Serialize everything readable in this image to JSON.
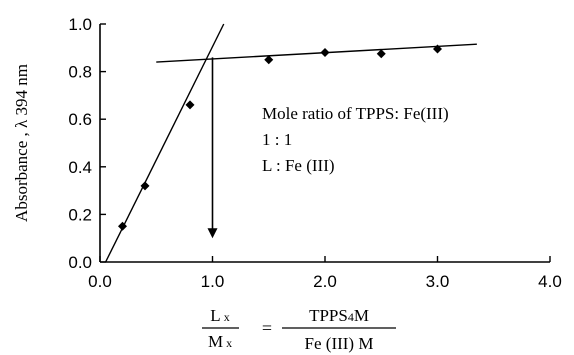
{
  "chart_data": {
    "type": "scatter",
    "ylabel": "Absorbance , λ 394 nm",
    "xlim": [
      0.0,
      4.0
    ],
    "ylim": [
      0.0,
      1.0
    ],
    "x_ticks": [
      "0.0",
      "1.0",
      "2.0",
      "3.0",
      "4.0"
    ],
    "y_ticks": [
      "0.0",
      "0.2",
      "0.4",
      "0.6",
      "0.8",
      "1.0"
    ],
    "grid": false,
    "series": [
      {
        "points": [
          {
            "x": 0.2,
            "y": 0.15
          },
          {
            "x": 0.4,
            "y": 0.32
          },
          {
            "x": 0.8,
            "y": 0.66
          },
          {
            "x": 1.5,
            "y": 0.85
          },
          {
            "x": 2.0,
            "y": 0.88
          },
          {
            "x": 2.5,
            "y": 0.875
          },
          {
            "x": 3.0,
            "y": 0.895
          }
        ],
        "marker": "diamond",
        "color": "#000000"
      }
    ],
    "fit_lines": [
      {
        "x": [
          0.05,
          1.1
        ],
        "y": [
          0.0,
          1.0
        ]
      },
      {
        "x": [
          0.5,
          3.35
        ],
        "y": [
          0.84,
          0.915
        ]
      }
    ],
    "arrow": {
      "x": 1.0,
      "y_from": 0.86,
      "y_to": 0.1
    },
    "annotation": {
      "lines": [
        "Mole ratio of TPPS: Fe(III)",
        "1 : 1",
        "L : Fe (III)"
      ]
    },
    "xlabel_formula": {
      "left_num": "L",
      "left_num_sub": "x",
      "left_den": "M",
      "left_den_sub": "x",
      "equals": "=",
      "right_num_a": "TPPS",
      "right_num_sub": "4",
      "right_num_b": "M",
      "right_den": "Fe (III) M"
    }
  }
}
